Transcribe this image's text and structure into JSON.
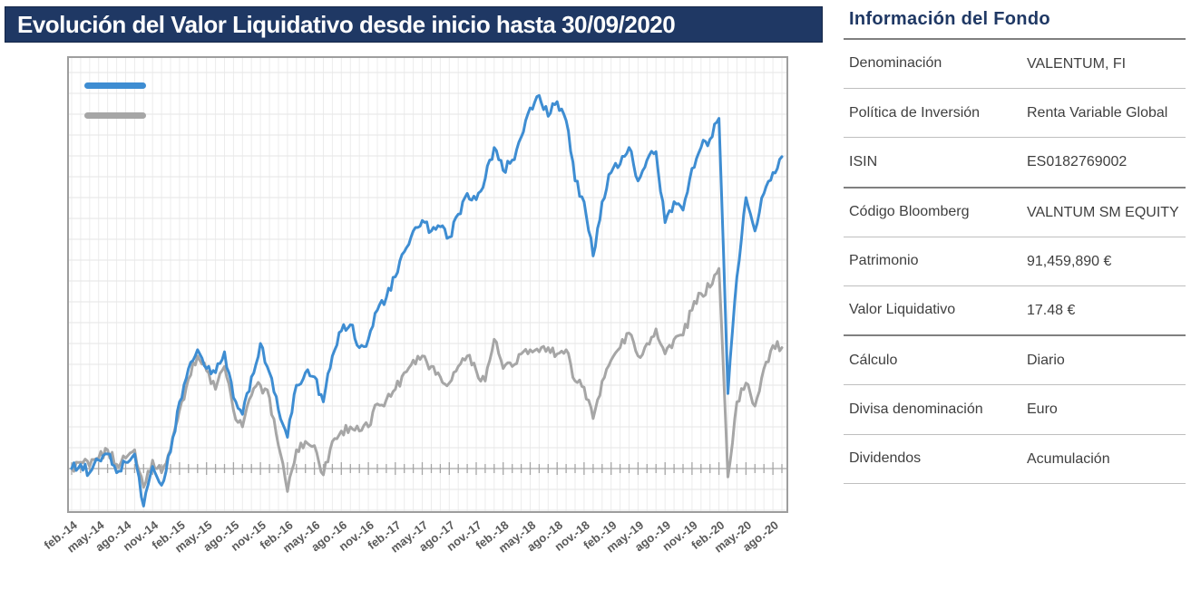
{
  "header": {
    "title": "Evolución del Valor Liquidativo desde inicio hasta 30/09/2020"
  },
  "info_panel": {
    "title": "Información del Fondo",
    "rows": [
      {
        "label": "Denominación",
        "value": "VALENTUM, FI"
      },
      {
        "label": "Política de Inversión",
        "value": "Renta Variable Global"
      },
      {
        "label": "ISIN",
        "value": "ES0182769002"
      },
      {
        "label": "Código Bloomberg",
        "value": "VALNTUM SM EQUITY"
      },
      {
        "label": "Patrimonio",
        "value": "91,459,890 €"
      },
      {
        "label": "Valor Liquidativo",
        "value": "17.48 €"
      },
      {
        "label": "Cálculo",
        "value": "Diario"
      },
      {
        "label": "Divisa denominación",
        "value": "Euro"
      },
      {
        "label": "Dividendos",
        "value": "Acumulación"
      }
    ]
  },
  "chart_data": {
    "type": "line",
    "title": "Evolución del Valor Liquidativo desde inicio hasta 30/09/2020",
    "months_start": "2014-02",
    "months_end": "2020-09",
    "x_tick_labels": [
      "feb.-14",
      "may.-14",
      "ago.-14",
      "nov.-14",
      "feb.-15",
      "may.-15",
      "ago.-15",
      "nov.-15",
      "feb.-16",
      "may.-16",
      "ago.-16",
      "nov.-16",
      "feb.-17",
      "may.-17",
      "ago.-17",
      "nov.-17",
      "feb.-18",
      "may.-18",
      "ago.-18",
      "nov.-18",
      "feb.-19",
      "may.-19",
      "ago.-19",
      "nov.-19",
      "feb.-20",
      "may.-20",
      "ago.-20"
    ],
    "y_axis_labels_visible": false,
    "ylim": [
      8.85,
      19.95
    ],
    "gridline_step": 0.5,
    "axis_baseline_value": 10,
    "grid": true,
    "legend": {
      "position": "top-left-inside",
      "labels_visible": false
    },
    "noise_amplitude": 0.13,
    "series": [
      {
        "id": "benchmark-line",
        "color": "#A6A6A6",
        "monthly_values": [
          10.0,
          10.15,
          10.05,
          10.25,
          10.45,
          10.1,
          10.25,
          10.45,
          9.55,
          10.2,
          9.9,
          10.45,
          11.4,
          12.15,
          12.7,
          12.35,
          11.9,
          12.45,
          11.4,
          11.0,
          11.75,
          12.0,
          11.7,
          10.55,
          9.45,
          10.45,
          10.65,
          10.55,
          9.85,
          10.65,
          10.9,
          11.0,
          10.9,
          11.0,
          11.55,
          11.65,
          11.9,
          12.3,
          12.6,
          12.7,
          12.45,
          12.2,
          12.05,
          12.45,
          12.7,
          12.35,
          12.1,
          13.1,
          12.4,
          12.45,
          12.75,
          12.85,
          12.8,
          12.9,
          12.75,
          12.85,
          12.1,
          11.95,
          11.2,
          12.1,
          12.6,
          12.9,
          13.25,
          12.7,
          13.0,
          13.35,
          12.75,
          13.1,
          13.2,
          13.8,
          14.2,
          14.35,
          14.8,
          9.8,
          11.6,
          12.05,
          11.5,
          12.4,
          12.95,
          12.9
        ]
      },
      {
        "id": "fund-nav-line",
        "color": "#3E8DD2",
        "monthly_values": [
          10.0,
          10.1,
          9.9,
          10.2,
          10.35,
          9.9,
          10.15,
          10.35,
          9.1,
          10.05,
          9.6,
          10.4,
          11.6,
          12.4,
          12.85,
          12.4,
          12.3,
          12.8,
          11.7,
          11.3,
          12.2,
          13.0,
          12.3,
          11.4,
          10.75,
          12.0,
          12.3,
          12.2,
          11.6,
          12.7,
          13.3,
          13.45,
          12.9,
          13.1,
          13.8,
          14.1,
          14.6,
          15.2,
          15.7,
          15.95,
          15.7,
          15.8,
          15.55,
          16.1,
          16.6,
          16.45,
          16.95,
          17.7,
          17.15,
          17.4,
          17.95,
          18.65,
          18.95,
          18.45,
          18.8,
          18.35,
          16.9,
          16.4,
          15.1,
          16.4,
          17.1,
          17.3,
          17.7,
          16.9,
          17.4,
          17.6,
          15.9,
          16.4,
          16.2,
          17.2,
          17.7,
          17.9,
          18.4,
          11.8,
          14.6,
          16.5,
          15.7,
          16.6,
          17.1,
          17.48
        ]
      }
    ]
  }
}
